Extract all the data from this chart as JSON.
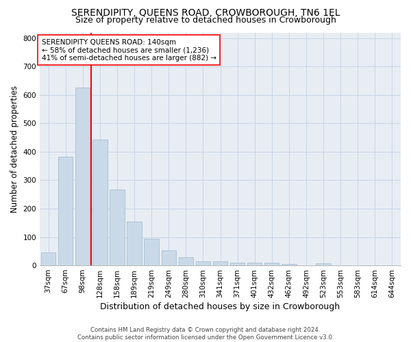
{
  "title": "SERENDIPITY, QUEENS ROAD, CROWBOROUGH, TN6 1EL",
  "subtitle": "Size of property relative to detached houses in Crowborough",
  "xlabel": "Distribution of detached houses by size in Crowborough",
  "ylabel": "Number of detached properties",
  "footnote": "Contains HM Land Registry data © Crown copyright and database right 2024.\nContains public sector information licensed under the Open Government Licence v3.0.",
  "bar_labels": [
    "37sqm",
    "67sqm",
    "98sqm",
    "128sqm",
    "158sqm",
    "189sqm",
    "219sqm",
    "249sqm",
    "280sqm",
    "310sqm",
    "341sqm",
    "371sqm",
    "401sqm",
    "432sqm",
    "462sqm",
    "492sqm",
    "523sqm",
    "553sqm",
    "583sqm",
    "614sqm",
    "644sqm"
  ],
  "bar_values": [
    46,
    383,
    625,
    443,
    268,
    155,
    95,
    52,
    28,
    15,
    15,
    11,
    11,
    11,
    5,
    0,
    8,
    0,
    0,
    0,
    0
  ],
  "bar_color": "#c9d9e8",
  "bar_edgecolor": "#a8bfd0",
  "vline_color": "red",
  "vline_x_index": 2.5,
  "annotation_text": "SERENDIPITY QUEENS ROAD: 140sqm\n← 58% of detached houses are smaller (1,236)\n41% of semi-detached houses are larger (882) →",
  "annotation_box_color": "white",
  "annotation_box_edgecolor": "red",
  "ylim": [
    0,
    820
  ],
  "yticks": [
    0,
    100,
    200,
    300,
    400,
    500,
    600,
    700,
    800
  ],
  "grid_color": "#c8d4e4",
  "bg_color": "#e8edf4",
  "title_fontsize": 10,
  "subtitle_fontsize": 9,
  "axis_label_fontsize": 9,
  "tick_fontsize": 7.5,
  "annotation_fontsize": 7.5,
  "ylabel_fontsize": 8.5
}
